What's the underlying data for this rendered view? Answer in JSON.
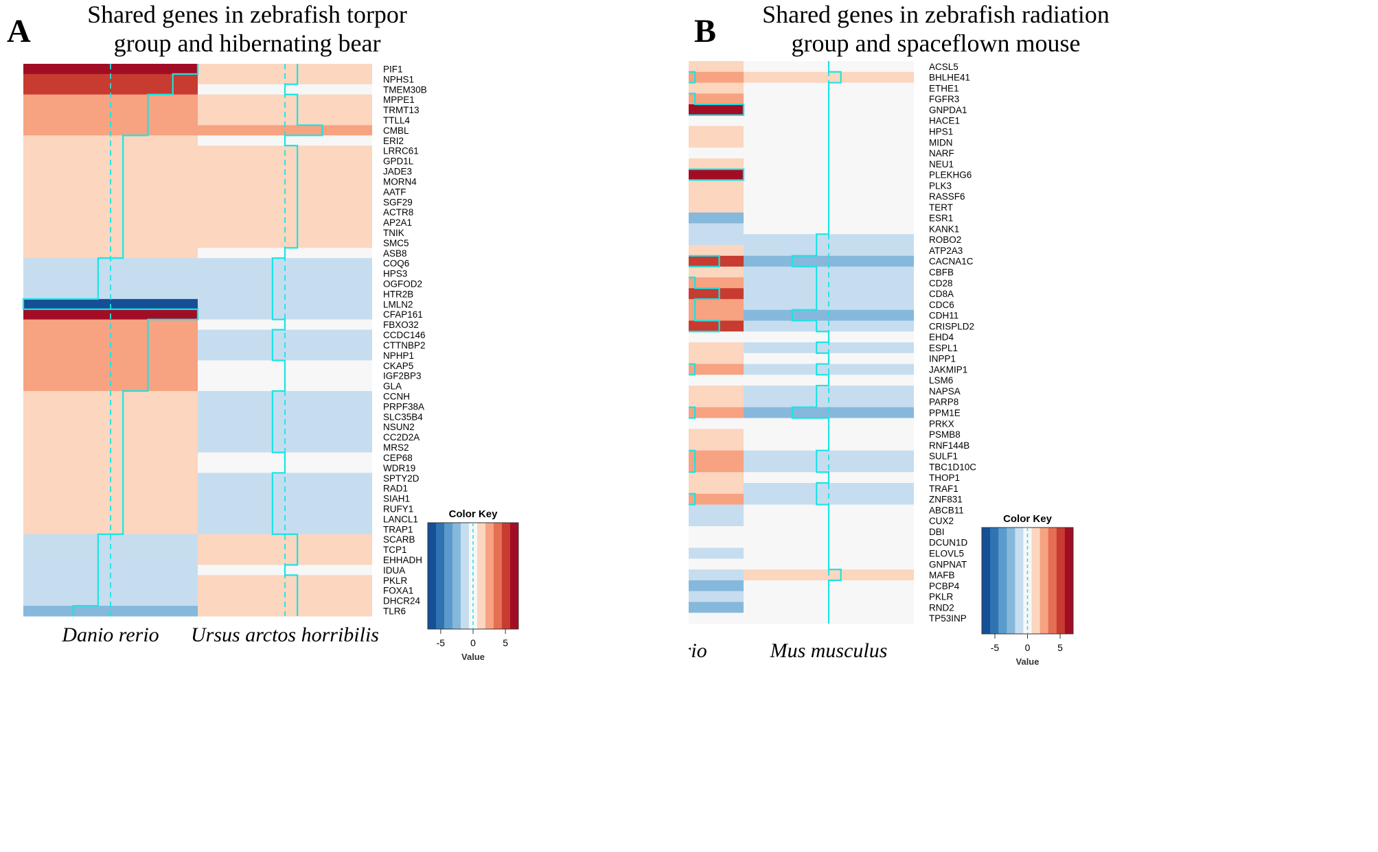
{
  "figure": {
    "label_a": "A",
    "label_b": "B"
  },
  "colors": {
    "scale": [
      "#154f96",
      "#2f73b3",
      "#5a9bcb",
      "#86b8dc",
      "#c6ddef",
      "#f7f7f7",
      "#fcd6bf",
      "#f7a281",
      "#e46f55",
      "#c73b30",
      "#a20d26"
    ],
    "trace": "#19e4e4",
    "missing": "#f7f7f7"
  },
  "color_key": {
    "title": "Color Key",
    "xlabel": "Value",
    "ticks": [
      "-5",
      "0",
      "5"
    ],
    "tick_values": [
      -5,
      0,
      5
    ],
    "range": [
      -7,
      7
    ],
    "bins": 11
  },
  "chart_data": [
    {
      "type": "heatmap",
      "panel": "A",
      "title_line1": "Shared genes in zebrafish torpor",
      "title_line2": "group and hibernating bear",
      "columns": [
        "Danio rerio",
        "Ursus arctos horribilis"
      ],
      "rows": [
        "PIF1",
        "NPHS1",
        "TMEM30B",
        "MPPE1",
        "TRMT13",
        "TTLL4",
        "CMBL",
        "ERI2",
        "LRRC61",
        "GPD1L",
        "JADE3",
        "MORN4",
        "AATF",
        "SGF29",
        "ACTR8",
        "AP2A1",
        "TNIK",
        "SMC5",
        "ASB8",
        "COQ6",
        "HPS3",
        "OGFOD2",
        "HTR2B",
        "LMLN2",
        "CFAP161",
        "FBXO32",
        "CCDC146",
        "CTTNBP2",
        "NPHP1",
        "CKAP5",
        "IGF2BP3",
        "GLA",
        "CCNH",
        "PRPF38A",
        "SLC35B4",
        "NSUN2",
        "CC2D2A",
        "MRS2",
        "CEP68",
        "WDR19",
        "SPTY2D",
        "RAD1",
        "SIAH1",
        "RUFY1",
        "LANCL1",
        "TRAP1",
        "SCARB",
        "TCP1",
        "EHHADH",
        "IDUA",
        "PKLR",
        "FOXA1",
        "DHCR24",
        "TLR6"
      ],
      "values": [
        [
          7,
          1
        ],
        [
          5,
          1
        ],
        [
          5,
          0
        ],
        [
          3,
          1
        ],
        [
          3,
          1
        ],
        [
          3,
          1
        ],
        [
          3,
          3
        ],
        [
          1,
          0
        ],
        [
          1,
          1
        ],
        [
          1,
          1
        ],
        [
          1,
          1
        ],
        [
          1,
          1
        ],
        [
          1,
          1
        ],
        [
          1,
          1
        ],
        [
          1,
          1
        ],
        [
          1,
          1
        ],
        [
          1,
          1
        ],
        [
          1,
          1
        ],
        [
          1,
          0
        ],
        [
          -1,
          -1
        ],
        [
          -1,
          -1
        ],
        [
          -1,
          -1
        ],
        [
          -1,
          -1
        ],
        [
          -7,
          -1
        ],
        [
          7,
          -1
        ],
        [
          3,
          0
        ],
        [
          3,
          -1
        ],
        [
          3,
          -1
        ],
        [
          3,
          -1
        ],
        [
          3,
          0
        ],
        [
          3,
          0
        ],
        [
          3,
          0
        ],
        [
          1,
          -1
        ],
        [
          1,
          -1
        ],
        [
          1,
          -1
        ],
        [
          1,
          -1
        ],
        [
          1,
          -1
        ],
        [
          1,
          -1
        ],
        [
          1,
          0
        ],
        [
          1,
          0
        ],
        [
          1,
          -1
        ],
        [
          1,
          -1
        ],
        [
          1,
          -1
        ],
        [
          1,
          -1
        ],
        [
          1,
          -1
        ],
        [
          1,
          -1
        ],
        [
          -1,
          1
        ],
        [
          -1,
          1
        ],
        [
          -1,
          1
        ],
        [
          -1,
          0
        ],
        [
          -1,
          1
        ],
        [
          -1,
          1
        ],
        [
          -1,
          1
        ],
        [
          -3,
          1
        ]
      ]
    },
    {
      "type": "heatmap",
      "panel": "B",
      "title_line1": "Shared genes in zebrafish radiation",
      "title_line2": "group and spaceflown mouse",
      "columns": [
        "Danio rerio",
        "Mus musculus"
      ],
      "rows": [
        "ACSL5",
        "BHLHE41",
        "ETHE1",
        "FGFR3",
        "GNPDA1",
        "HACE1",
        "HPS1",
        "MIDN",
        "NARF",
        "NEU1",
        "PLEKHG6",
        "PLK3",
        "RASSF6",
        "TERT",
        "ESR1",
        "KANK1",
        "ROBO2",
        "ATP2A3",
        "CACNA1C",
        "CBFB",
        "CD28",
        "CD8A",
        "CDC6",
        "CDH11",
        "CRISPLD2",
        "EHD4",
        "ESPL1",
        "INPP1",
        "JAKMIP1",
        "LSM6",
        "NAPSA",
        "PARP8",
        "PPM1E",
        "PRKX",
        "PSMB8",
        "RNF144B",
        "SULF1",
        "TBC1D10C",
        "THOP1",
        "TRAF1",
        "ZNF831",
        "ABCB11",
        "CUX2",
        "DBI",
        "DCUN1D",
        "ELOVL5",
        "GNPNAT",
        "MAFB",
        "PCBP4",
        "PKLR",
        "RND2",
        "TP53INP"
      ],
      "values": [
        [
          1,
          0
        ],
        [
          3,
          1
        ],
        [
          1,
          0
        ],
        [
          3,
          0
        ],
        [
          7,
          0
        ],
        [
          0,
          0
        ],
        [
          1,
          0
        ],
        [
          1,
          0
        ],
        [
          0,
          0
        ],
        [
          1,
          0
        ],
        [
          7,
          0
        ],
        [
          1,
          0
        ],
        [
          1,
          0
        ],
        [
          1,
          0
        ],
        [
          -3,
          0
        ],
        [
          -1,
          0
        ],
        [
          -1,
          -1
        ],
        [
          1,
          -1
        ],
        [
          5,
          -3
        ],
        [
          1,
          -1
        ],
        [
          3,
          -1
        ],
        [
          5,
          -1
        ],
        [
          3,
          -1
        ],
        [
          3,
          -3
        ],
        [
          5,
          -1
        ],
        [
          0,
          0
        ],
        [
          1,
          -1
        ],
        [
          1,
          0
        ],
        [
          3,
          -1
        ],
        [
          0,
          0
        ],
        [
          1,
          -1
        ],
        [
          1,
          -1
        ],
        [
          3,
          -3
        ],
        [
          0,
          0
        ],
        [
          1,
          0
        ],
        [
          1,
          0
        ],
        [
          3,
          -1
        ],
        [
          3,
          -1
        ],
        [
          1,
          0
        ],
        [
          1,
          -1
        ],
        [
          3,
          -1
        ],
        [
          -1,
          0
        ],
        [
          -1,
          0
        ],
        [
          0,
          0
        ],
        [
          0,
          0
        ],
        [
          -1,
          0
        ],
        [
          0,
          0
        ],
        [
          -1,
          1
        ],
        [
          -3,
          0
        ],
        [
          -1,
          0
        ],
        [
          -3,
          0
        ],
        [
          0,
          0
        ]
      ]
    }
  ]
}
